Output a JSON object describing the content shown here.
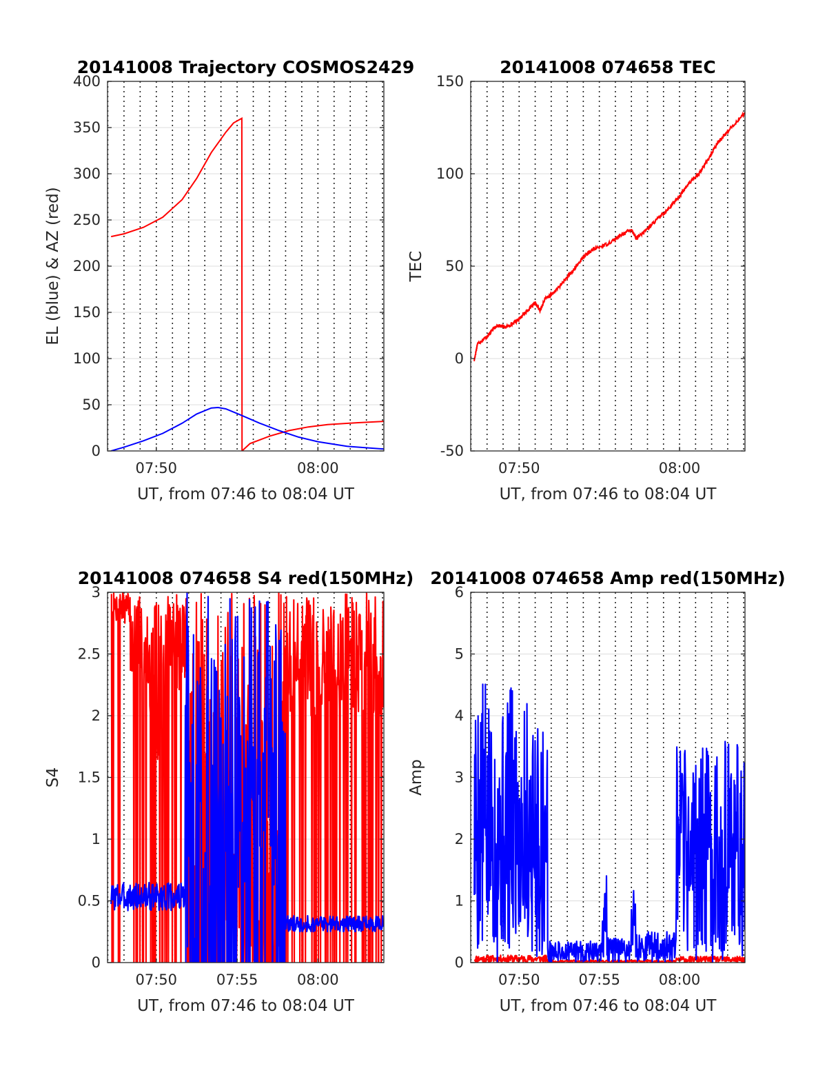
{
  "colors": {
    "red": "#ff0000",
    "blue": "#0000ff",
    "axis": "#262626"
  },
  "chart_data": [
    {
      "type": "line",
      "title": "20141008 Trajectory COSMOS2429",
      "xlabel": "UT, from 07:46 to 08:04 UT",
      "ylabel": "EL (blue) & AZ (red)",
      "xlim": [
        7.783,
        8.068
      ],
      "ylim": [
        0,
        400
      ],
      "yticks": [
        0,
        50,
        100,
        150,
        200,
        250,
        300,
        350,
        400
      ],
      "xticks": [
        7.8333,
        8.0
      ],
      "xticklabels": [
        "07:50",
        "08:00"
      ],
      "grid": "x dotted every minute",
      "series": [
        {
          "color": "red",
          "kind": "smooth",
          "points": [
            [
              7.7867,
              232
            ],
            [
              7.8,
              235
            ],
            [
              7.82,
              242
            ],
            [
              7.84,
              253
            ],
            [
              7.86,
              272
            ],
            [
              7.875,
              295
            ],
            [
              7.89,
              323
            ],
            [
              7.905,
              345
            ],
            [
              7.913,
              355
            ],
            [
              7.9215,
              360
            ],
            [
              7.9217,
              0
            ],
            [
              7.93,
              8
            ],
            [
              7.95,
              16
            ],
            [
              7.97,
              22
            ],
            [
              7.99,
              26
            ],
            [
              8.01,
              28.5
            ],
            [
              8.04,
              30.5
            ],
            [
              8.068,
              32
            ]
          ]
        },
        {
          "color": "blue",
          "kind": "smooth",
          "points": [
            [
              7.7867,
              0
            ],
            [
              7.8,
              4
            ],
            [
              7.82,
              11
            ],
            [
              7.84,
              19
            ],
            [
              7.86,
              30
            ],
            [
              7.875,
              40
            ],
            [
              7.89,
              46.5
            ],
            [
              7.897,
              47
            ],
            [
              7.905,
              45.5
            ],
            [
              7.92,
              39
            ],
            [
              7.94,
              30
            ],
            [
              7.96,
              22
            ],
            [
              7.98,
              15
            ],
            [
              8.0,
              10
            ],
            [
              8.03,
              5
            ],
            [
              8.068,
              2
            ]
          ]
        }
      ]
    },
    {
      "type": "line",
      "title": "20141008 074658 TEC",
      "xlabel": "UT, from 07:46 to 08:04 UT",
      "ylabel": "TEC",
      "xlim": [
        7.783,
        8.068
      ],
      "ylim": [
        -50,
        150
      ],
      "yticks": [
        -50,
        0,
        50,
        100,
        150
      ],
      "xticks": [
        7.8333,
        8.0
      ],
      "xticklabels": [
        "07:50",
        "08:00"
      ],
      "grid": "x dotted every minute",
      "series": [
        {
          "color": "red",
          "kind": "noisy",
          "noise": 0.9,
          "points": [
            [
              7.7867,
              -1
            ],
            [
              7.79,
              8
            ],
            [
              7.8,
              12
            ],
            [
              7.81,
              18
            ],
            [
              7.82,
              17
            ],
            [
              7.83,
              20
            ],
            [
              7.84,
              25
            ],
            [
              7.85,
              30
            ],
            [
              7.855,
              26
            ],
            [
              7.86,
              32
            ],
            [
              7.87,
              36
            ],
            [
              7.88,
              42
            ],
            [
              7.89,
              48
            ],
            [
              7.9,
              55
            ],
            [
              7.91,
              59
            ],
            [
              7.925,
              62
            ],
            [
              7.94,
              67
            ],
            [
              7.95,
              70
            ],
            [
              7.955,
              65
            ],
            [
              7.96,
              67
            ],
            [
              7.97,
              72
            ],
            [
              7.98,
              77
            ],
            [
              7.99,
              82
            ],
            [
              8.0,
              88
            ],
            [
              8.01,
              95
            ],
            [
              8.02,
              100
            ],
            [
              8.03,
              108
            ],
            [
              8.04,
              117
            ],
            [
              8.05,
              123
            ],
            [
              8.068,
              133
            ]
          ]
        }
      ]
    },
    {
      "type": "line",
      "title": "20141008 074658 S4 red(150MHz)",
      "xlabel": "UT, from 07:46 to 08:04 UT",
      "ylabel": "S4",
      "xlim": [
        7.783,
        8.068
      ],
      "ylim": [
        0,
        3
      ],
      "yticks": [
        0,
        0.5,
        1,
        1.5,
        2,
        2.5,
        3
      ],
      "yticklabels": [
        "0",
        "0.5",
        "1",
        "1.5",
        "2",
        "2.5",
        "3"
      ],
      "xticks": [
        7.8333,
        7.9167,
        8.0
      ],
      "xticklabels": [
        "07:50",
        "07:55",
        "08:00"
      ],
      "grid": "x dotted every minute",
      "series": [
        {
          "color": "red",
          "kind": "spiky",
          "seed": 7,
          "segments": [
            [
              7.7867,
              7.8067,
              2.75,
              3.0,
              0.12
            ],
            [
              7.8067,
              7.8267,
              2.2,
              3.0,
              0.18
            ],
            [
              7.8267,
              7.8467,
              1.6,
              3.0,
              0.22
            ],
            [
              7.8467,
              7.8667,
              2.2,
              3.0,
              0.15
            ],
            [
              7.8667,
              7.9667,
              0.0,
              3.0,
              0.35
            ],
            [
              7.9667,
              8.068,
              2.0,
              3.0,
              0.2
            ]
          ]
        },
        {
          "color": "blue",
          "kind": "spiky",
          "seed": 3,
          "segments": [
            [
              7.7867,
              7.8633,
              0.42,
              0.65,
              0
            ],
            [
              7.8633,
              7.9,
              0.0,
              3.0,
              0.4
            ],
            [
              7.9,
              7.93,
              0.3,
              3.0,
              0.25
            ],
            [
              7.93,
              7.96,
              0.6,
              3.0,
              0.2
            ],
            [
              7.96,
              7.9667,
              0.0,
              3.0,
              0.5
            ],
            [
              7.9667,
              8.068,
              0.25,
              0.38,
              0
            ]
          ]
        }
      ]
    },
    {
      "type": "line",
      "title": "20141008 074658 Amp red(150MHz)",
      "xlabel": "UT, from 07:46 to 08:04 UT",
      "ylabel": "Amp",
      "xlim": [
        7.783,
        8.068
      ],
      "ylim": [
        0,
        6
      ],
      "yticks": [
        0,
        1,
        2,
        3,
        4,
        5,
        6
      ],
      "xticks": [
        7.8333,
        7.9167,
        8.0
      ],
      "xticklabels": [
        "07:50",
        "07:55",
        "08:00"
      ],
      "grid": "x dotted every minute",
      "series": [
        {
          "color": "red",
          "kind": "spiky",
          "seed": 11,
          "segments": [
            [
              7.7867,
              7.863,
              0.0,
              0.12,
              0
            ],
            [
              7.863,
              7.9967,
              0.0,
              0.04,
              0
            ],
            [
              7.9967,
              8.068,
              0.0,
              0.1,
              0
            ]
          ]
        },
        {
          "color": "blue",
          "kind": "spiky",
          "seed": 5,
          "segments": [
            [
              7.7867,
              7.8,
              0.0,
              4.6,
              0
            ],
            [
              7.8,
              7.82,
              0.0,
              4.2,
              0
            ],
            [
              7.82,
              7.845,
              0.05,
              4.5,
              0
            ],
            [
              7.845,
              7.863,
              0.05,
              3.9,
              0
            ],
            [
              7.863,
              7.92,
              0.0,
              0.35,
              0
            ],
            [
              7.92,
              7.925,
              0.0,
              1.5,
              0
            ],
            [
              7.925,
              7.95,
              0.0,
              0.4,
              0
            ],
            [
              7.95,
              7.955,
              0.0,
              1.3,
              0
            ],
            [
              7.955,
              7.9967,
              0.0,
              0.5,
              0
            ],
            [
              7.9967,
              8.02,
              0.0,
              3.5,
              0
            ],
            [
              8.02,
              8.068,
              0.0,
              3.6,
              0
            ]
          ]
        }
      ]
    }
  ]
}
